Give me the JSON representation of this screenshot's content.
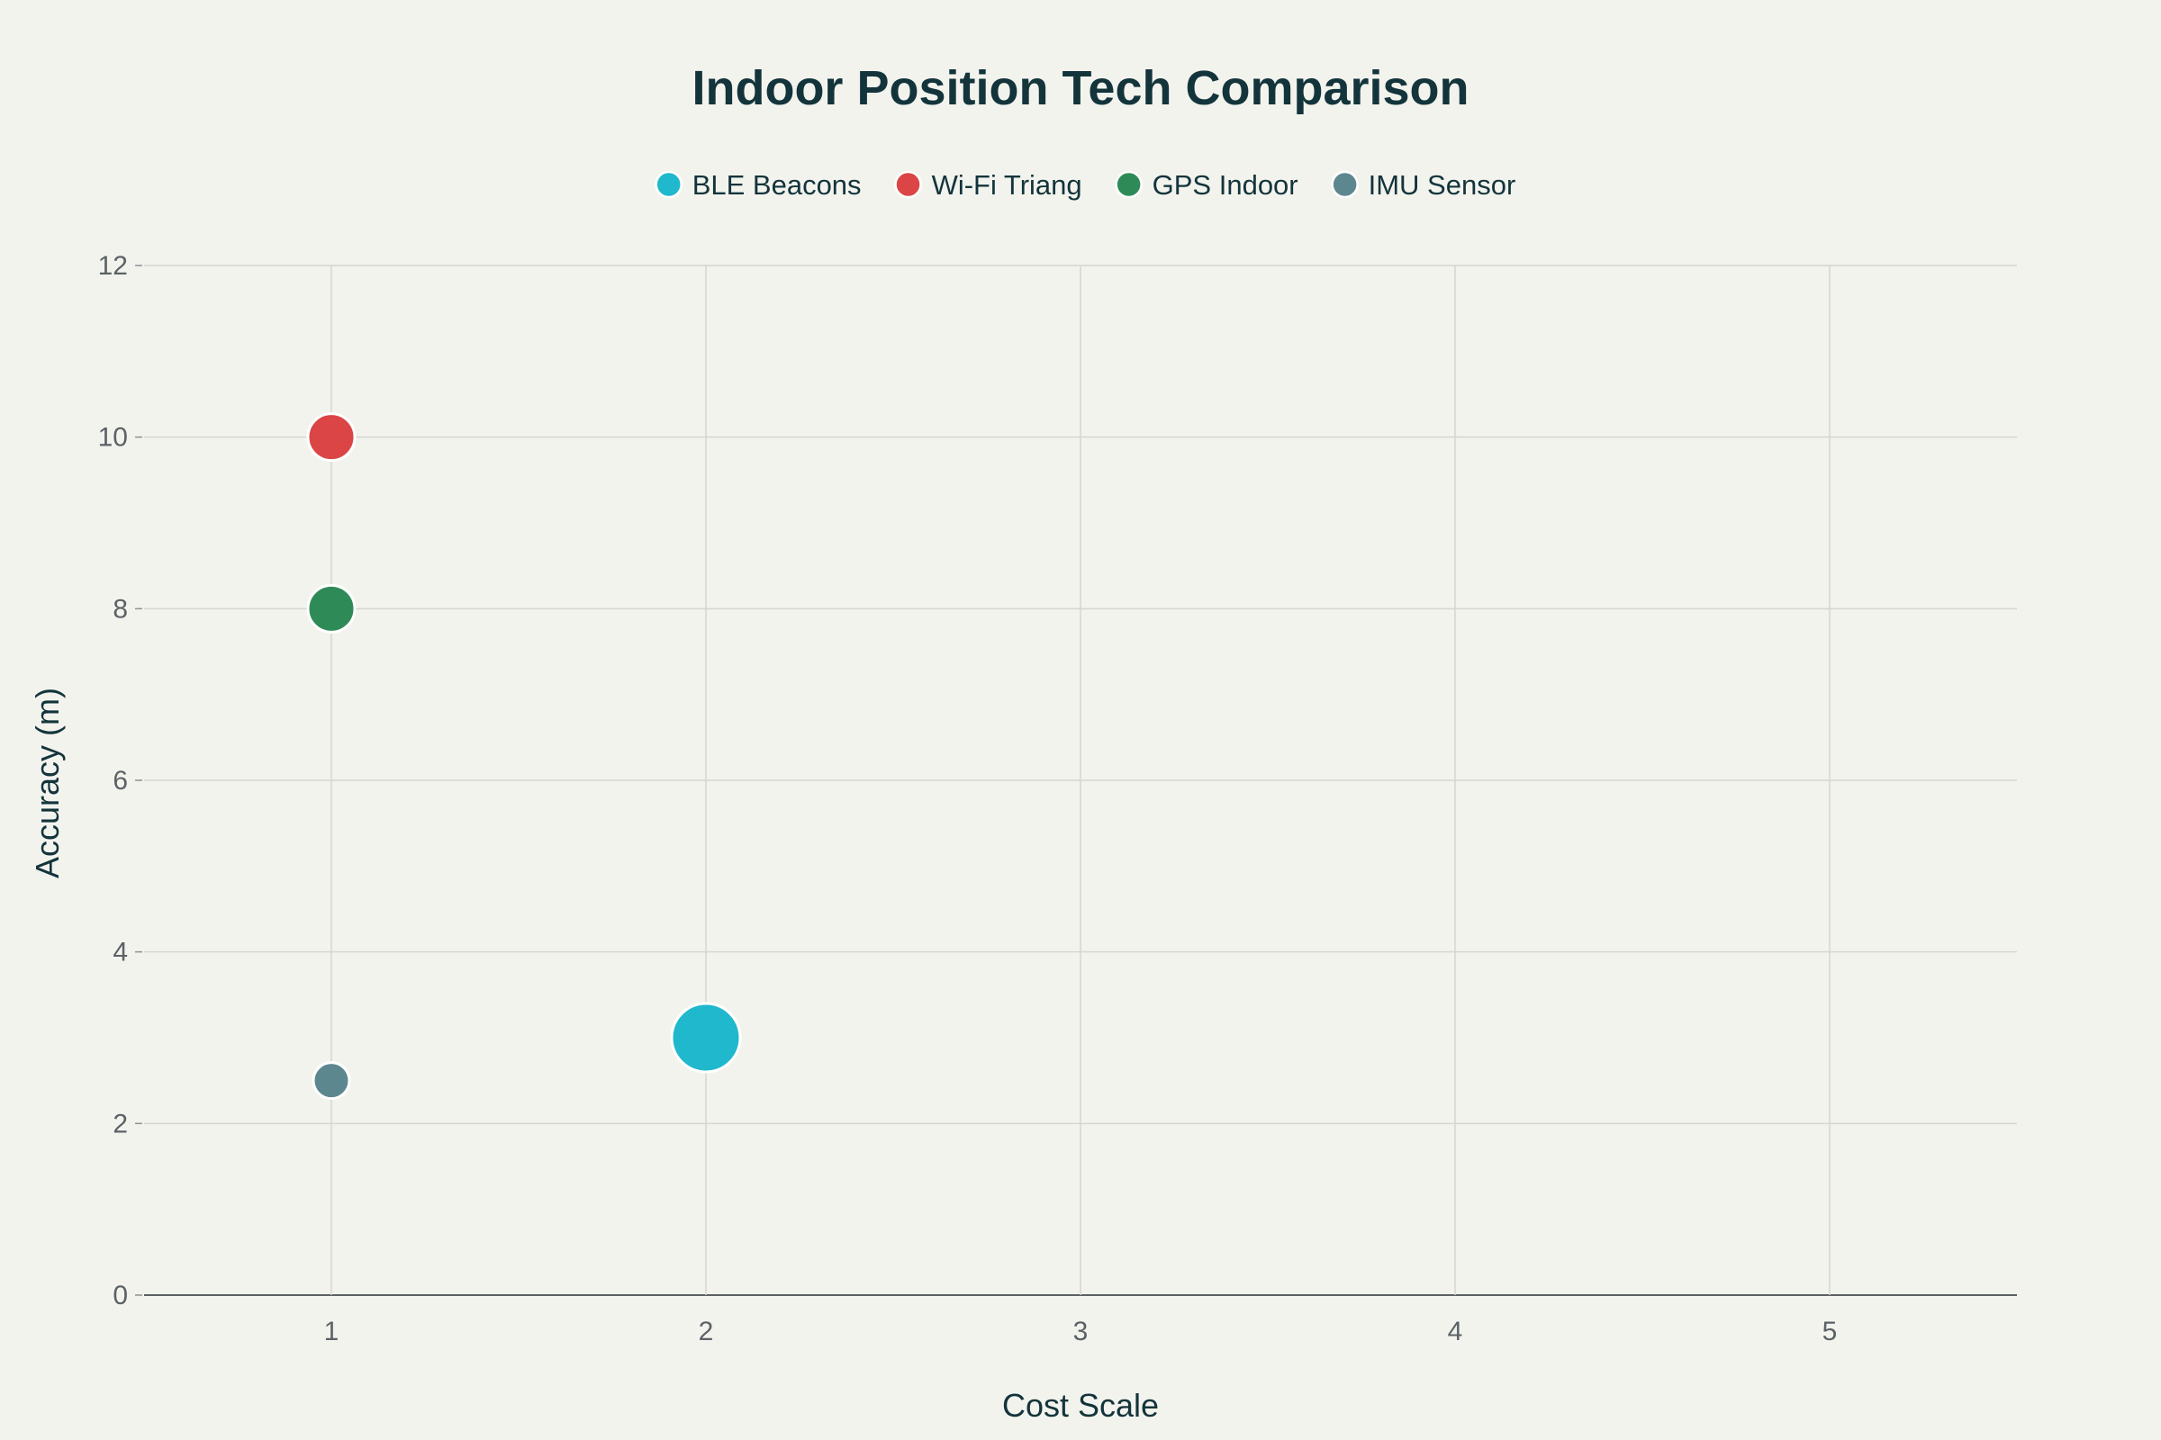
{
  "chart_data": {
    "type": "scatter",
    "title": "Indoor Position Tech Comparison",
    "xlabel": "Cost Scale",
    "ylabel": "Accuracy (m)",
    "xlim": [
      0.5,
      5.5
    ],
    "ylim": [
      0,
      12
    ],
    "x_ticks": [
      1,
      2,
      3,
      4,
      5
    ],
    "y_ticks": [
      0,
      2,
      4,
      6,
      8,
      10,
      12
    ],
    "grid": true,
    "legend_position": "top-center",
    "series": [
      {
        "name": "BLE Beacons",
        "color": "#1fb8cd",
        "points": [
          {
            "x": 2,
            "y": 3,
            "size": 3
          }
        ]
      },
      {
        "name": "Wi-Fi Triang",
        "color": "#db4545",
        "points": [
          {
            "x": 1,
            "y": 10,
            "size": 2
          }
        ]
      },
      {
        "name": "GPS Indoor",
        "color": "#2e8b57",
        "points": [
          {
            "x": 1,
            "y": 8,
            "size": 2
          }
        ]
      },
      {
        "name": "IMU Sensor",
        "color": "#5d878f",
        "points": [
          {
            "x": 1,
            "y": 2.5,
            "size": 1
          }
        ]
      }
    ]
  }
}
